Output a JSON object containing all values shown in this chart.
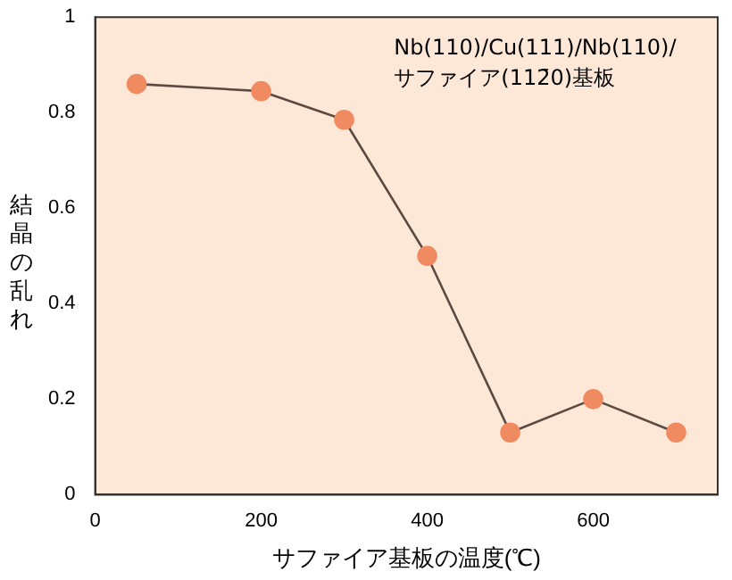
{
  "chart_data": {
    "type": "line",
    "xlabel": "サファイア基板の温度(℃)",
    "ylabel": "結晶の乱れ",
    "annotations": [
      "Nb(110)/Cu(111)/Nb(110)/",
      "サファイア(112̄0)基板"
    ],
    "x": [
      50,
      200,
      300,
      400,
      500,
      600,
      700
    ],
    "series": [
      {
        "color": "#f08a60",
        "values": [
          0.86,
          0.845,
          0.785,
          0.5,
          0.13,
          0.2,
          0.13
        ]
      }
    ],
    "xlim": [
      0,
      750
    ],
    "xticks": [
      0,
      200,
      400,
      600
    ],
    "ylim": [
      0,
      1
    ],
    "yticks": [
      0,
      0.2,
      0.4,
      0.6,
      0.8,
      1
    ],
    "grid": false,
    "legend": false,
    "marker": "circle",
    "line_style": "solid"
  }
}
